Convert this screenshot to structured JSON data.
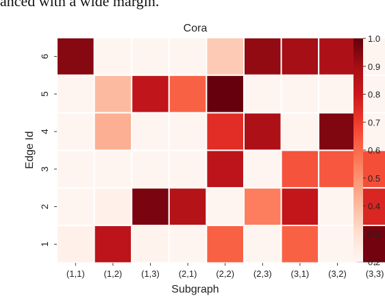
{
  "caption_fragment": "anced with a wide margin.",
  "chart_data": {
    "type": "heatmap",
    "title": "Cora",
    "xlabel": "Subgraph",
    "ylabel": "Edge Id",
    "x_categories": [
      "(1,1)",
      "(1,2)",
      "(1,3)",
      "(2,1)",
      "(2,2)",
      "(2,3)",
      "(3,1)",
      "(3,2)",
      "(3,3)"
    ],
    "y_categories": [
      "6",
      "5",
      "4",
      "3",
      "2",
      "1"
    ],
    "values": [
      [
        0.95,
        0.2,
        0.2,
        0.2,
        0.36,
        0.93,
        0.9,
        0.88,
        0.2
      ],
      [
        0.2,
        0.4,
        0.83,
        0.62,
        1.0,
        0.2,
        0.2,
        0.2,
        0.2
      ],
      [
        0.2,
        0.43,
        0.2,
        0.2,
        0.74,
        0.88,
        0.2,
        0.96,
        0.2
      ],
      [
        0.2,
        0.2,
        0.2,
        0.2,
        0.84,
        0.2,
        0.65,
        0.64,
        0.66
      ],
      [
        0.2,
        0.22,
        0.97,
        0.86,
        0.2,
        0.55,
        0.82,
        0.2,
        0.76
      ],
      [
        0.22,
        0.84,
        0.21,
        0.2,
        0.62,
        0.2,
        0.62,
        0.2,
        0.98
      ]
    ],
    "colorbar": {
      "range": [
        0.2,
        1.0
      ],
      "ticks": [
        "0.2",
        "0.3",
        "0.4",
        "0.5",
        "0.6",
        "0.7",
        "0.8",
        "0.9",
        "1.0"
      ],
      "colormap": "Reds",
      "low_color": "#fff5f0",
      "high_color": "#67000d"
    },
    "grid": true,
    "cell_border_color": "#ffffff"
  }
}
